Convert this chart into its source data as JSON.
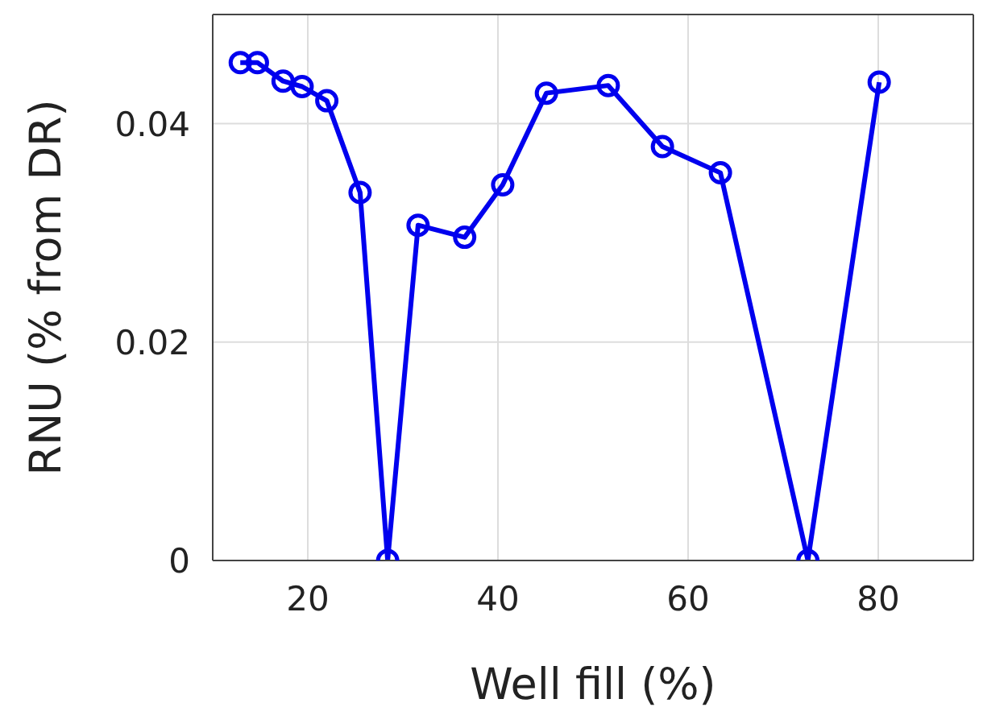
{
  "chart_data": {
    "type": "line",
    "xlabel": "Well fill (%)",
    "ylabel": "RNU (% from DR)",
    "x": [
      12.9,
      14.7,
      17.4,
      19.4,
      22.0,
      25.5,
      28.4,
      31.6,
      36.5,
      40.5,
      45.1,
      51.6,
      57.3,
      63.4,
      72.6,
      80.1
    ],
    "series": [
      {
        "color": "#0000ee",
        "values": [
          0.0456,
          0.0456,
          0.0439,
          0.0434,
          0.0421,
          0.0337,
          0,
          0.0307,
          0.0296,
          0.0344,
          0.0428,
          0.0435,
          0.0379,
          0.0355,
          0,
          0.0438
        ]
      }
    ],
    "xlim": [
      10,
      90
    ],
    "xticks": [
      20,
      40,
      60,
      80
    ],
    "ylim": [
      0,
      0.05
    ],
    "yticks": [
      0,
      0.02,
      0.04
    ],
    "grid": true,
    "marker": "circle",
    "line_style": "solid"
  }
}
